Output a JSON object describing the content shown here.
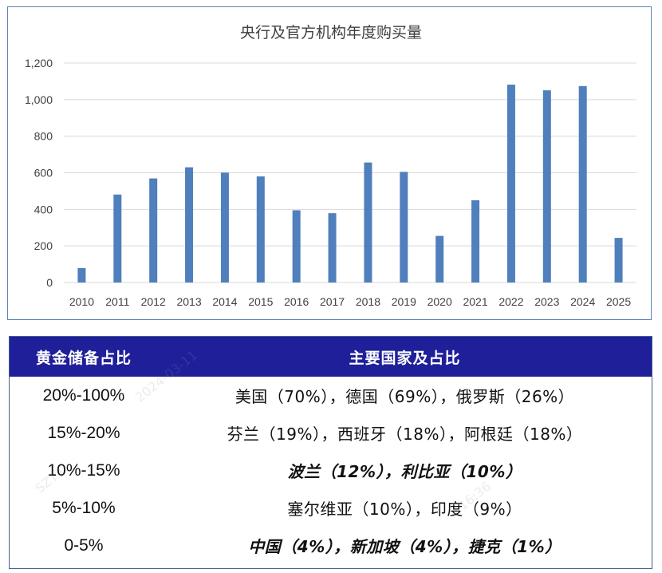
{
  "chart_data": {
    "type": "bar",
    "title": "央行及官方机构年度购买量",
    "categories": [
      "2010",
      "2011",
      "2012",
      "2013",
      "2014",
      "2015",
      "2016",
      "2017",
      "2018",
      "2019",
      "2020",
      "2021",
      "2022",
      "2023",
      "2024",
      "2025"
    ],
    "series": [
      {
        "values": [
          79,
          481,
          569,
          630,
          601,
          580,
          395,
          379,
          656,
          605,
          255,
          450,
          1082,
          1051,
          1074,
          244
        ]
      }
    ],
    "ylim": [
      0,
      1200
    ],
    "yticks": [
      0,
      200,
      400,
      600,
      800,
      1000,
      1200
    ],
    "ytick_labels": [
      "0",
      "200",
      "400",
      "600",
      "800",
      "1,000",
      "1,200"
    ],
    "grid": true,
    "bar_color": "#4f7fbc"
  },
  "table": {
    "headers": [
      "黄金储备占比",
      "主要国家及占比"
    ],
    "rows": [
      {
        "ratio": "20%-100%",
        "countries": "美国（70%），德国（69%），俄罗斯（26%）",
        "bold_italic": false
      },
      {
        "ratio": "15%-20%",
        "countries": "芬兰（19%），西班牙（18%），阿根廷（18%）",
        "bold_italic": false
      },
      {
        "ratio": "10%-15%",
        "countries": "波兰（12%），利比亚（10%）",
        "bold_italic": true
      },
      {
        "ratio": "5%-10%",
        "countries": "塞尔维亚（10%），印度（9%）",
        "bold_italic": false
      },
      {
        "ratio": "0-5%",
        "countries": "中国（4%），新加坡（4%），捷克（1%）",
        "bold_italic": true
      }
    ],
    "header_bg": "#1f1f9a"
  }
}
